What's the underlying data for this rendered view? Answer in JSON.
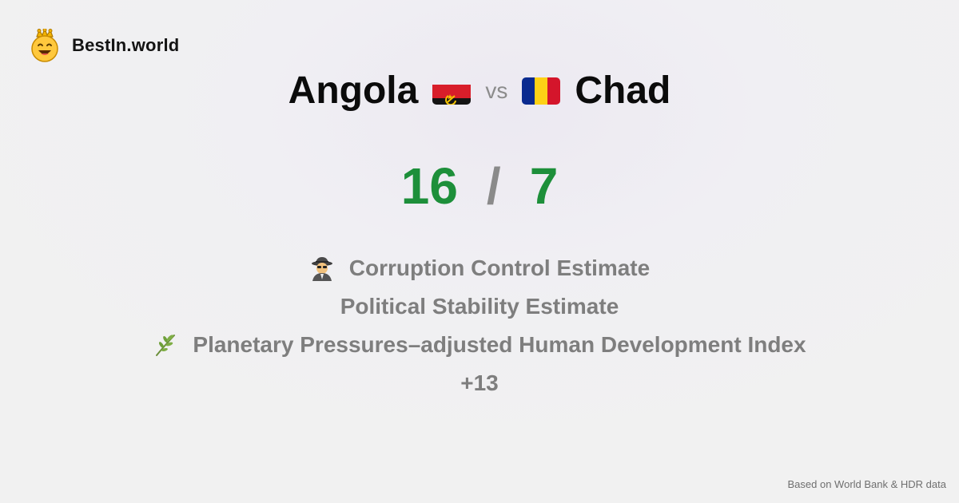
{
  "brand": {
    "name": "BestIn.world",
    "icon": "crowned-smiley-icon"
  },
  "comparison": {
    "left_country": "Angola",
    "left_flag": "angola-flag-icon",
    "vs_label": "vs",
    "right_country": "Chad",
    "right_flag": "chad-flag-icon"
  },
  "score": {
    "left": "16",
    "separator": "/",
    "right": "7",
    "color": "#1d8f3a"
  },
  "metrics": [
    {
      "icon": "spy-detective-icon",
      "label": "Corruption Control Estimate"
    },
    {
      "icon": "",
      "label": "Political Stability Estimate"
    },
    {
      "icon": "herb-sprig-icon",
      "label": "Planetary Pressures–adjusted Human Development Index"
    }
  ],
  "more_count": "+13",
  "footer": {
    "source": "Based on World Bank & HDR data"
  }
}
